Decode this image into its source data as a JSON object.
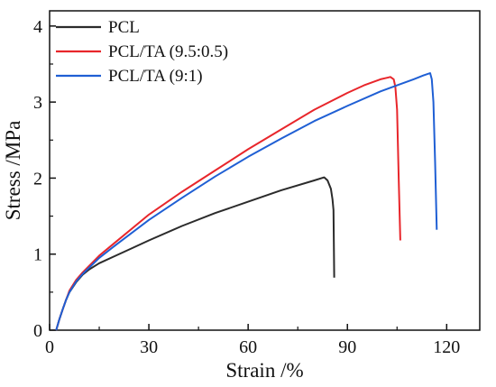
{
  "chart_data": {
    "type": "line",
    "title": "",
    "xlabel": "Strain /%",
    "ylabel": "Stress /MPa",
    "xlim": [
      0,
      130
    ],
    "ylim": [
      0,
      4.2
    ],
    "xticks": [
      0,
      30,
      60,
      90,
      120
    ],
    "yticks": [
      0,
      1,
      2,
      3,
      4
    ],
    "grid": false,
    "legend_position": "top-left",
    "series": [
      {
        "name": "PCL",
        "color": "#2b2b2b",
        "x": [
          2,
          3,
          4,
          5,
          6,
          8,
          10,
          12,
          15,
          20,
          25,
          30,
          40,
          50,
          60,
          70,
          80,
          83,
          84,
          85,
          85.5,
          85.8,
          86
        ],
        "y": [
          0,
          0.15,
          0.28,
          0.4,
          0.5,
          0.63,
          0.73,
          0.8,
          0.88,
          0.98,
          1.08,
          1.18,
          1.37,
          1.54,
          1.69,
          1.84,
          1.97,
          2.01,
          1.97,
          1.86,
          1.72,
          1.58,
          0.69
        ]
      },
      {
        "name": "PCL/TA (9.5:0.5)",
        "color": "#e8262b",
        "x": [
          2,
          3,
          4,
          5,
          6,
          8,
          10,
          15,
          20,
          30,
          40,
          50,
          60,
          70,
          80,
          90,
          95,
          100,
          102,
          103,
          104,
          104.5,
          105,
          105.5,
          106
        ],
        "y": [
          0,
          0.15,
          0.28,
          0.4,
          0.52,
          0.66,
          0.76,
          0.98,
          1.16,
          1.52,
          1.82,
          2.1,
          2.38,
          2.64,
          2.9,
          3.12,
          3.22,
          3.3,
          3.32,
          3.33,
          3.3,
          3.2,
          2.9,
          2.0,
          1.18
        ]
      },
      {
        "name": "PCL/TA (9:1)",
        "color": "#1f5fd4",
        "x": [
          2,
          3,
          4,
          5,
          6,
          8,
          10,
          15,
          20,
          30,
          40,
          50,
          60,
          70,
          80,
          90,
          100,
          105,
          110,
          113,
          115,
          115.5,
          116,
          116.5,
          117
        ],
        "y": [
          0,
          0.15,
          0.28,
          0.4,
          0.5,
          0.64,
          0.74,
          0.95,
          1.12,
          1.45,
          1.74,
          2.02,
          2.28,
          2.52,
          2.75,
          2.95,
          3.14,
          3.22,
          3.3,
          3.35,
          3.38,
          3.3,
          3.0,
          2.2,
          1.32
        ]
      }
    ]
  }
}
